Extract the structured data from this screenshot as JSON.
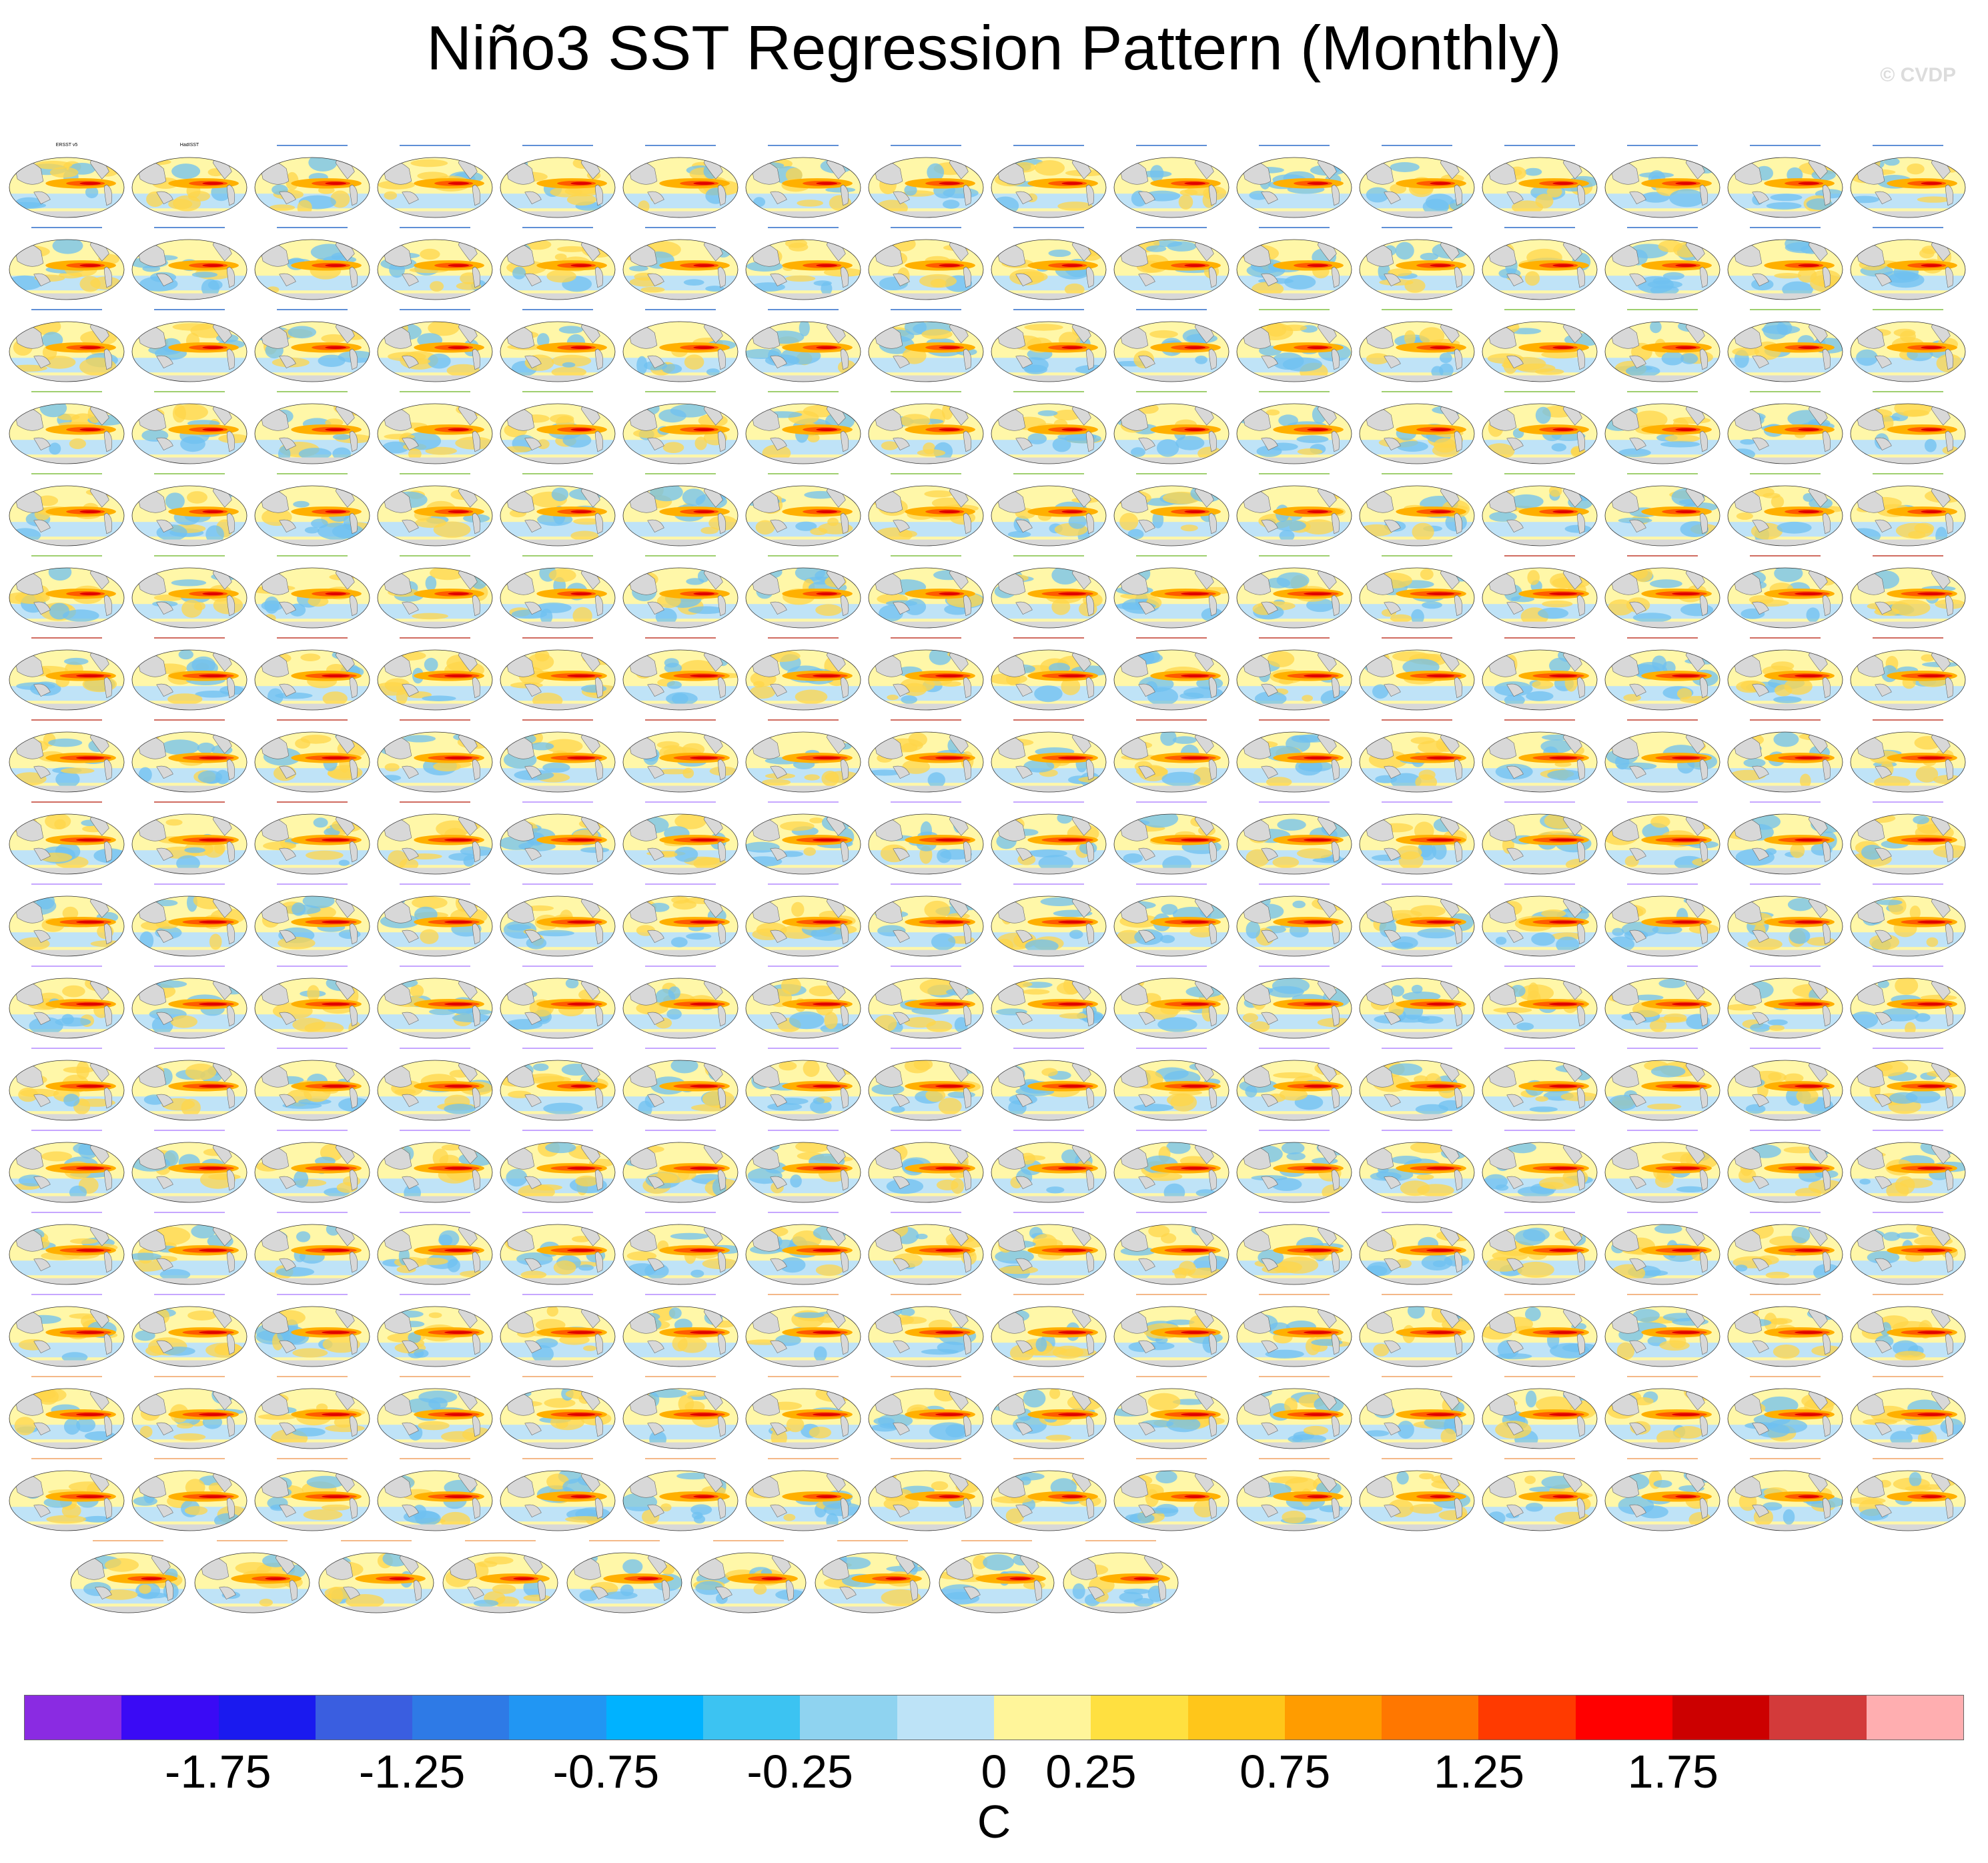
{
  "title": "Niño3 SST Regression Pattern (Monthly)",
  "watermark": "© CVDP",
  "panel_grid": {
    "panel_count": 281,
    "icon": "globe-map-icon",
    "first_panels": [
      {
        "title": "ERSST v5",
        "years": "1950-2022",
        "color": "#000000"
      },
      {
        "title": "HadISST",
        "years": "1950-2022",
        "color": "#000000"
      }
    ],
    "label_colors": {
      "access": "#2a6ac8",
      "canesm": "#7fbf3f",
      "cesm1": "#c0392b",
      "cesm2": "#b388ff",
      "csiro": "#f0a060"
    }
  },
  "colorbar": {
    "colors": [
      "#8a2be2",
      "#3a0af5",
      "#1a1aef",
      "#3a5ee0",
      "#2e7ae6",
      "#2196f3",
      "#00b2ff",
      "#3cc3f2",
      "#8fd3f0",
      "#bde3f7",
      "#fff59a",
      "#ffe040",
      "#ffc61a",
      "#ff9c00",
      "#ff7700",
      "#ff3a00",
      "#ff0000",
      "#cc0000",
      "#d33a3a",
      "#ffaeb0"
    ],
    "tick_labels": [
      "-1.75",
      "-1.25",
      "-0.75",
      "-0.25",
      "0",
      "0.25",
      "0.75",
      "1.25",
      "1.75"
    ],
    "units": "C"
  }
}
